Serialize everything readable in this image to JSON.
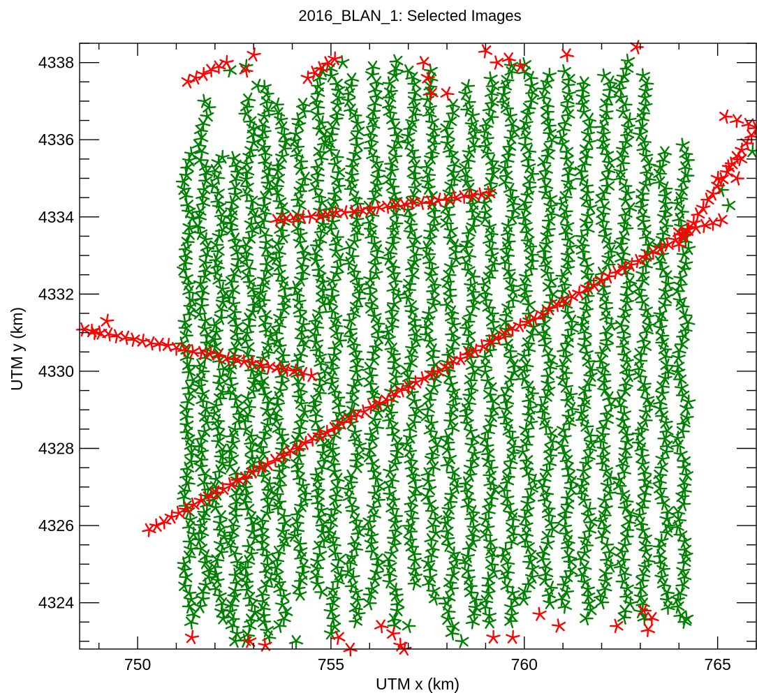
{
  "chart_data": {
    "type": "scatter",
    "title": "2016_BLAN_1: Selected Images",
    "xlabel": "UTM x (km)",
    "ylabel": "UTM y (km)",
    "xlim": [
      748.5,
      766.0
    ],
    "ylim": [
      4322.8,
      4338.5
    ],
    "x_ticks": [
      750,
      755,
      760,
      765
    ],
    "y_ticks": [
      4324,
      4326,
      4328,
      4330,
      4332,
      4334,
      4336,
      4338
    ],
    "x_minor_step": 1,
    "y_minor_step": 0.5,
    "grid": false,
    "marker": "asterisk",
    "series": [
      {
        "color": "#008000",
        "description_of_points": "flight-line image centres",
        "flight_lines": [
          {
            "x": 751.3,
            "y0": 4323.5,
            "y1": 4335.7
          },
          {
            "x": 751.7,
            "y0": 4323.9,
            "y1": 4337.1
          },
          {
            "x": 752.1,
            "y0": 4323.6,
            "y1": 4335.6
          },
          {
            "x": 752.5,
            "y0": 4323.0,
            "y1": 4335.6
          },
          {
            "x": 752.9,
            "y0": 4323.0,
            "y1": 4337.2
          },
          {
            "x": 753.3,
            "y0": 4323.1,
            "y1": 4337.4
          },
          {
            "x": 753.7,
            "y0": 4323.4,
            "y1": 4337.0
          },
          {
            "x": 754.2,
            "y0": 4324.2,
            "y1": 4337.1
          },
          {
            "x": 754.7,
            "y0": 4324.3,
            "y1": 4337.8
          },
          {
            "x": 755.1,
            "y0": 4323.4,
            "y1": 4337.9
          },
          {
            "x": 755.6,
            "y0": 4323.5,
            "y1": 4337.6
          },
          {
            "x": 756.1,
            "y0": 4324.0,
            "y1": 4338.0
          },
          {
            "x": 756.6,
            "y0": 4323.4,
            "y1": 4338.1
          },
          {
            "x": 757.1,
            "y0": 4324.5,
            "y1": 4337.9
          },
          {
            "x": 757.6,
            "y0": 4324.1,
            "y1": 4337.8
          },
          {
            "x": 758.1,
            "y0": 4323.2,
            "y1": 4337.0
          },
          {
            "x": 758.6,
            "y0": 4323.5,
            "y1": 4337.5
          },
          {
            "x": 759.1,
            "y0": 4323.5,
            "y1": 4337.6
          },
          {
            "x": 759.6,
            "y0": 4323.5,
            "y1": 4338.1
          },
          {
            "x": 760.1,
            "y0": 4324.1,
            "y1": 4338.0
          },
          {
            "x": 760.6,
            "y0": 4324.0,
            "y1": 4337.7
          },
          {
            "x": 761.1,
            "y0": 4323.9,
            "y1": 4337.9
          },
          {
            "x": 761.6,
            "y0": 4323.6,
            "y1": 4337.6
          },
          {
            "x": 762.1,
            "y0": 4324.0,
            "y1": 4337.7
          },
          {
            "x": 762.6,
            "y0": 4323.6,
            "y1": 4338.1
          },
          {
            "x": 763.1,
            "y0": 4323.6,
            "y1": 4337.7
          },
          {
            "x": 763.6,
            "y0": 4323.9,
            "y1": 4335.8
          },
          {
            "x": 764.1,
            "y0": 4323.5,
            "y1": 4335.9
          }
        ],
        "extra_points": [
          [
            765.1,
            4334.7
          ],
          [
            765.3,
            4334.3
          ],
          [
            765.9,
            4335.7
          ],
          [
            752.4,
            4337.8
          ],
          [
            752.8,
            4337.9
          ],
          [
            753.1,
            4337.4
          ],
          [
            755.3,
            4338.0
          ],
          [
            754.1,
            4323.0
          ],
          [
            755.0,
            4323.2
          ],
          [
            757.0,
            4323.4
          ],
          [
            758.4,
            4323.0
          ],
          [
            764.2,
            4323.6
          ]
        ]
      },
      {
        "color": "#ff0000",
        "description_of_points": "transit-line image centres",
        "lines": [
          {
            "x0": 750.3,
            "y0": 4325.9,
            "x1": 764.1,
            "y1": 4333.5
          },
          {
            "x0": 764.0,
            "y0": 4333.6,
            "x1": 765.1,
            "y1": 4333.9
          },
          {
            "x0": 764.0,
            "y0": 4333.3,
            "x1": 766.0,
            "y1": 4336.3
          },
          {
            "x0": 748.6,
            "y0": 4331.1,
            "x1": 754.5,
            "y1": 4329.9
          },
          {
            "x0": 753.6,
            "y0": 4333.9,
            "x1": 759.1,
            "y1": 4334.6
          },
          {
            "x0": 751.3,
            "y0": 4337.5,
            "x1": 752.3,
            "y1": 4338.0
          },
          {
            "x0": 754.4,
            "y0": 4337.6,
            "x1": 755.1,
            "y1": 4338.1
          }
        ],
        "points": [
          [
            748.9,
            4331.0
          ],
          [
            749.2,
            4331.3
          ],
          [
            752.8,
            4337.8
          ],
          [
            753.0,
            4338.2
          ],
          [
            757.4,
            4338.0
          ],
          [
            757.5,
            4337.6
          ],
          [
            757.6,
            4337.2
          ],
          [
            758.0,
            4337.2
          ],
          [
            759.0,
            4338.3
          ],
          [
            759.3,
            4338.0
          ],
          [
            759.6,
            4338.1
          ],
          [
            759.9,
            4337.9
          ],
          [
            761.1,
            4338.2
          ],
          [
            762.9,
            4338.4
          ],
          [
            765.0,
            4335.0
          ],
          [
            765.3,
            4335.3
          ],
          [
            765.5,
            4335.0
          ],
          [
            765.6,
            4335.5
          ],
          [
            765.2,
            4336.6
          ],
          [
            765.5,
            4336.5
          ],
          [
            765.8,
            4336.4
          ],
          [
            751.4,
            4323.1
          ],
          [
            752.9,
            4323.0
          ],
          [
            753.3,
            4322.9
          ],
          [
            755.2,
            4323.1
          ],
          [
            755.5,
            4322.8
          ],
          [
            756.3,
            4323.4
          ],
          [
            756.6,
            4323.2
          ],
          [
            756.8,
            4322.9
          ],
          [
            756.9,
            4322.8
          ],
          [
            759.2,
            4323.1
          ],
          [
            759.7,
            4323.1
          ],
          [
            760.4,
            4323.7
          ],
          [
            760.9,
            4323.4
          ],
          [
            762.4,
            4323.4
          ],
          [
            763.1,
            4323.8
          ],
          [
            763.3,
            4323.6
          ],
          [
            763.2,
            4323.3
          ]
        ]
      }
    ]
  }
}
